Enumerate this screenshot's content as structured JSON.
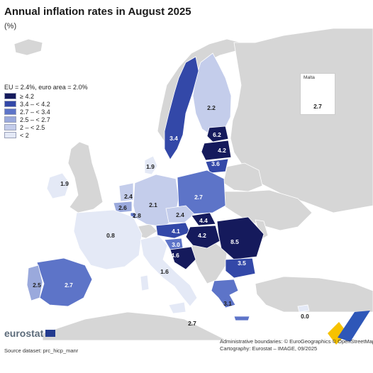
{
  "title": "Annual inflation rates in August 2025",
  "subtitle": "(%)",
  "legend": {
    "title": "EU = 2.4%, euro area = 2.0%",
    "classes": [
      {
        "label": "≥ 4.2",
        "color": "#151a5c"
      },
      {
        "label": "3.4 – < 4.2",
        "color": "#3348a8"
      },
      {
        "label": "2.7 – < 3.4",
        "color": "#5d74c8"
      },
      {
        "label": "2.5 – < 2.7",
        "color": "#9aa9dc"
      },
      {
        "label": "2 – < 2.5",
        "color": "#c4cdeb"
      },
      {
        "label": "< 2",
        "color": "#e4e9f6"
      }
    ]
  },
  "colors": {
    "sea": "#ffffff",
    "non_eu_land": "#d6d6d6",
    "border": "#ffffff"
  },
  "countries": [
    {
      "name": "Estonia",
      "value": "6.2"
    },
    {
      "name": "Latvia",
      "value": "4.2"
    },
    {
      "name": "Lithuania",
      "value": "3.6"
    },
    {
      "name": "Finland",
      "value": "2.2"
    },
    {
      "name": "Sweden",
      "value": "3.4"
    },
    {
      "name": "Denmark",
      "value": "1.9"
    },
    {
      "name": "Ireland",
      "value": "1.9"
    },
    {
      "name": "Netherlands",
      "value": "2.4"
    },
    {
      "name": "Belgium",
      "value": "2.6"
    },
    {
      "name": "Luxembourg",
      "value": "2.8"
    },
    {
      "name": "Germany",
      "value": "2.1"
    },
    {
      "name": "Poland",
      "value": "2.7"
    },
    {
      "name": "Czechia",
      "value": "2.4"
    },
    {
      "name": "Slovakia",
      "value": "4.4"
    },
    {
      "name": "Austria",
      "value": "4.1"
    },
    {
      "name": "Hungary",
      "value": "4.2"
    },
    {
      "name": "Romania",
      "value": "8.5"
    },
    {
      "name": "Slovenia",
      "value": "3.0"
    },
    {
      "name": "Croatia",
      "value": "4.6"
    },
    {
      "name": "Bulgaria",
      "value": "3.5"
    },
    {
      "name": "France",
      "value": "0.8"
    },
    {
      "name": "Italy",
      "value": "1.6"
    },
    {
      "name": "Greece",
      "value": "3.1"
    },
    {
      "name": "Cyprus",
      "value": "0.0"
    },
    {
      "name": "Spain",
      "value": "2.7"
    },
    {
      "name": "Portugal",
      "value": "2.5"
    },
    {
      "name": "Malta",
      "value": "2.7"
    }
  ],
  "malta_inset": {
    "name": "Malta",
    "value": "2.7"
  },
  "logo": "eurostat",
  "source": "Source dataset: prc_hicp_manr",
  "credits": {
    "line1": "Administrative boundaries: © EuroGeographics © OpenStreetMap",
    "line2": "Cartography: Eurostat – IMAGE, 09/2025"
  }
}
